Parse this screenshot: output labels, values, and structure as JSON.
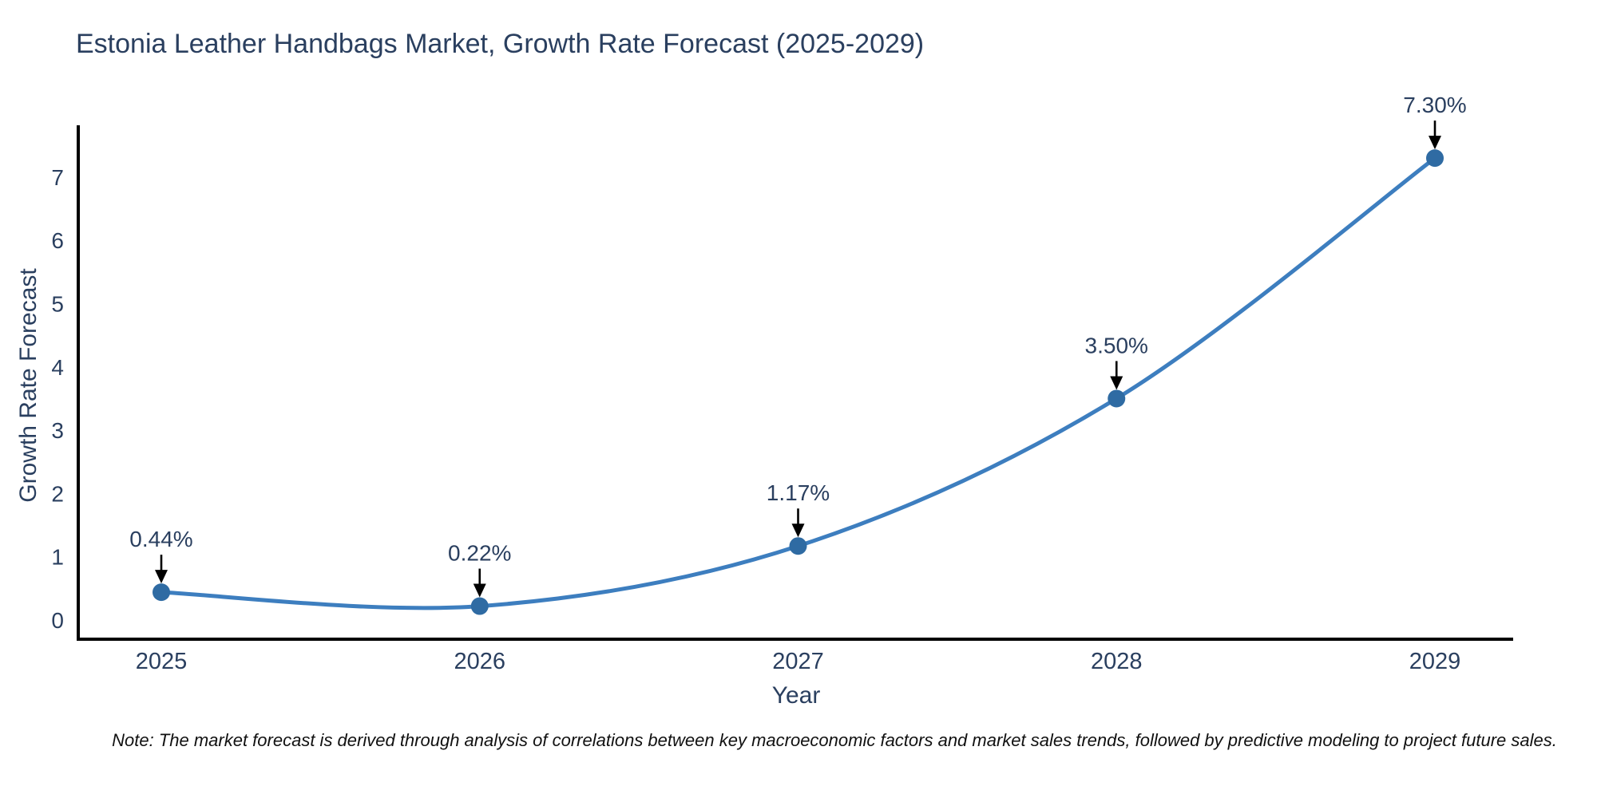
{
  "page": {
    "background_color": "#ffffff"
  },
  "chart_data": {
    "type": "line",
    "title": "Estonia Leather Handbags Market, Growth Rate Forecast (2025-2029)",
    "xlabel": "Year",
    "ylabel": "Growth Rate Forecast",
    "categories": [
      "2025",
      "2026",
      "2027",
      "2028",
      "2029"
    ],
    "values": [
      0.44,
      0.22,
      1.17,
      3.5,
      7.3
    ],
    "data_labels": [
      "0.44%",
      "0.22%",
      "1.17%",
      "3.50%",
      "7.30%"
    ],
    "yticks": [
      0,
      1,
      2,
      3,
      4,
      5,
      6,
      7
    ],
    "ylim": [
      0,
      7.8
    ],
    "grid": false,
    "legend": "none",
    "line_shape": "spline",
    "marker": "circle",
    "annotation_arrows": true,
    "colors": {
      "line": "#3d7ebf",
      "marker": "#2f6ba3",
      "axis_spine": "#000000",
      "tick_label": "#2a3f5f",
      "title": "#2a3f5f",
      "annotation_text": "#2a3f5f",
      "annotation_arrow": "#000000",
      "note_text": "#111111",
      "background": "#ffffff"
    }
  },
  "note": "Note: The market forecast is derived through analysis of correlations between key macroeconomic factors and market sales trends, followed by predictive modeling to project future sales."
}
